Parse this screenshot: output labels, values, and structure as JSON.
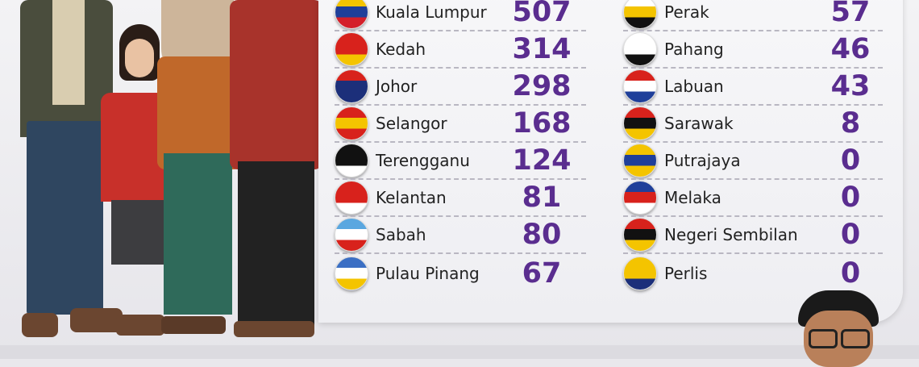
{
  "left_column": [
    {
      "state": "Kuala Lumpur",
      "value": "507",
      "flag_colors": [
        "#f4c400",
        "#1f3f9a",
        "#d4202a"
      ]
    },
    {
      "state": "Kedah",
      "value": "314",
      "flag_colors": [
        "#d8221c",
        "#d8221c",
        "#f4c400"
      ]
    },
    {
      "state": "Johor",
      "value": "298",
      "flag_colors": [
        "#d8221c",
        "#1c2f7a",
        "#1c2f7a"
      ]
    },
    {
      "state": "Selangor",
      "value": "168",
      "flag_colors": [
        "#d8221c",
        "#f4c400",
        "#d8221c"
      ]
    },
    {
      "state": "Terengganu",
      "value": "124",
      "flag_colors": [
        "#111111",
        "#111111",
        "#ffffff"
      ]
    },
    {
      "state": "Kelantan",
      "value": "81",
      "flag_colors": [
        "#d8221c",
        "#d8221c",
        "#ffffff"
      ]
    },
    {
      "state": "Sabah",
      "value": "80",
      "flag_colors": [
        "#5aa7e0",
        "#ffffff",
        "#d8221c"
      ]
    },
    {
      "state": "Pulau Pinang",
      "value": "67",
      "flag_colors": [
        "#3b6fc4",
        "#ffffff",
        "#f4c400"
      ]
    }
  ],
  "right_column": [
    {
      "state": "Perak",
      "value": "57",
      "flag_colors": [
        "#ffffff",
        "#f4c400",
        "#111111"
      ]
    },
    {
      "state": "Pahang",
      "value": "46",
      "flag_colors": [
        "#ffffff",
        "#ffffff",
        "#111111"
      ]
    },
    {
      "state": "Labuan",
      "value": "43",
      "flag_colors": [
        "#d8221c",
        "#ffffff",
        "#1f3f9a"
      ]
    },
    {
      "state": "Sarawak",
      "value": "8",
      "flag_colors": [
        "#d8221c",
        "#111111",
        "#f4c400"
      ]
    },
    {
      "state": "Putrajaya",
      "value": "0",
      "flag_colors": [
        "#f4c400",
        "#1f3f9a",
        "#f4c400"
      ]
    },
    {
      "state": "Melaka",
      "value": "0",
      "flag_colors": [
        "#1f3f9a",
        "#d8221c",
        "#ffffff"
      ]
    },
    {
      "state": "Negeri Sembilan",
      "value": "0",
      "flag_colors": [
        "#d8221c",
        "#111111",
        "#f4c400"
      ]
    },
    {
      "state": "Perlis",
      "value": "0",
      "flag_colors": [
        "#f4c400",
        "#f4c400",
        "#1c2f7a"
      ]
    }
  ],
  "colors": {
    "value_text": "#5a2d8f"
  }
}
